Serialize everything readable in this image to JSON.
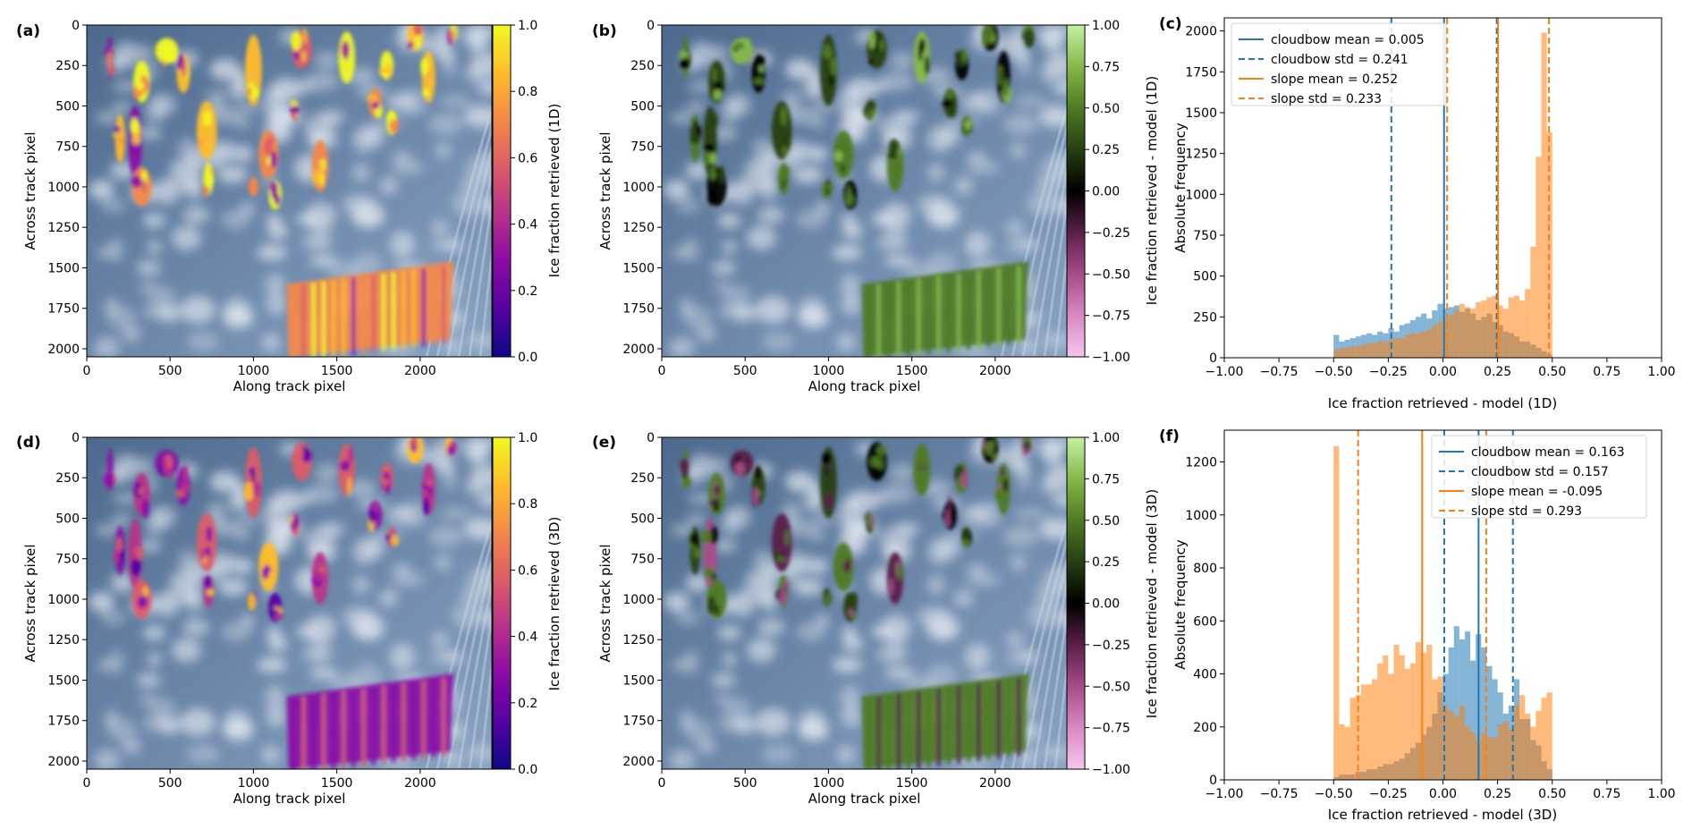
{
  "common": {
    "img_xlabel": "Along track pixel",
    "img_ylabel": "Across track pixel",
    "img_xticks": [
      "0",
      "500",
      "1000",
      "1500",
      "2000"
    ],
    "img_yticks": [
      "0",
      "250",
      "500",
      "750",
      "1000",
      "1250",
      "1500",
      "1750",
      "2000"
    ],
    "hist_ylabel": "Absolute frequency",
    "hist_xticks": [
      "−1.00",
      "−0.75",
      "−0.50",
      "−0.25",
      "0.00",
      "0.25",
      "0.50",
      "0.75",
      "1.00"
    ]
  },
  "colors": {
    "cloudbow": "#1f77b4",
    "slope": "#ff7f0e",
    "cloudbow_fill": "#1f77b4",
    "slope_fill": "#ff7f0e",
    "plasma": [
      "#0d0887",
      "#5302a3",
      "#8b0aa5",
      "#b83289",
      "#db5c68",
      "#f48849",
      "#febd2a",
      "#f0f921"
    ],
    "piyg": [
      "#f7c6ea",
      "#d889c2",
      "#a64d88",
      "#5a1f48",
      "#000000",
      "#273f12",
      "#4f7a22",
      "#86b84c",
      "#c4f2a2"
    ]
  },
  "panels": {
    "a": {
      "label": "(a)",
      "cbar_label": "Ice fraction retrieved (1D)",
      "cbar_ticks": [
        "0.0",
        "0.2",
        "0.4",
        "0.6",
        "0.8",
        "1.0"
      ]
    },
    "b": {
      "label": "(b)",
      "cbar_label": "Ice fraction retrieved - model (1D)",
      "cbar_ticks": [
        "−1.00",
        "−0.75",
        "−0.50",
        "−0.25",
        "0.00",
        "0.25",
        "0.50",
        "0.75",
        "1.00"
      ]
    },
    "c": {
      "label": "(c)",
      "xlabel": "Ice fraction retrieved - model (1D)",
      "yticks": [
        "0",
        "250",
        "500",
        "750",
        "1000",
        "1250",
        "1500",
        "1750",
        "2000"
      ],
      "legend": [
        "cloudbow mean = 0.005",
        "cloudbow std = 0.241",
        "slope mean = 0.252",
        "slope std = 0.233"
      ]
    },
    "d": {
      "label": "(d)",
      "cbar_label": "Ice fraction retrieved (3D)",
      "cbar_ticks": [
        "0.0",
        "0.2",
        "0.4",
        "0.6",
        "0.8",
        "1.0"
      ]
    },
    "e": {
      "label": "(e)",
      "cbar_label": "Ice fraction retrieved - model (3D)",
      "cbar_ticks": [
        "−1.00",
        "−0.75",
        "−0.50",
        "−0.25",
        "0.00",
        "0.25",
        "0.50",
        "0.75",
        "1.00"
      ]
    },
    "f": {
      "label": "(f)",
      "xlabel": "Ice fraction retrieved - model (3D)",
      "yticks": [
        "0",
        "200",
        "400",
        "600",
        "800",
        "1000",
        "1200"
      ],
      "legend": [
        "cloudbow mean = 0.163",
        "cloudbow std = 0.157",
        "slope mean = -0.095",
        "slope std = 0.293"
      ]
    }
  },
  "chart_data": [
    {
      "panel": "c",
      "type": "bar",
      "bins": [
        -0.5,
        -0.475,
        -0.45,
        -0.425,
        -0.4,
        -0.375,
        -0.35,
        -0.325,
        -0.3,
        -0.275,
        -0.25,
        -0.225,
        -0.2,
        -0.175,
        -0.15,
        -0.125,
        -0.1,
        -0.075,
        -0.05,
        -0.025,
        0.0,
        0.025,
        0.05,
        0.075,
        0.1,
        0.125,
        0.15,
        0.175,
        0.2,
        0.225,
        0.25,
        0.275,
        0.3,
        0.325,
        0.35,
        0.375,
        0.4,
        0.425,
        0.45,
        0.475
      ],
      "series": [
        {
          "name": "cloudbow",
          "values": [
            140,
            100,
            110,
            120,
            130,
            140,
            150,
            140,
            160,
            150,
            180,
            160,
            200,
            210,
            230,
            250,
            270,
            240,
            290,
            330,
            300,
            310,
            320,
            280,
            300,
            270,
            230,
            250,
            270,
            220,
            200,
            160,
            150,
            130,
            100,
            100,
            80,
            60,
            40,
            20
          ]
        },
        {
          "name": "slope",
          "values": [
            50,
            60,
            60,
            70,
            70,
            80,
            90,
            90,
            100,
            100,
            110,
            120,
            120,
            140,
            150,
            150,
            160,
            170,
            200,
            220,
            240,
            260,
            290,
            330,
            310,
            300,
            340,
            350,
            370,
            380,
            320,
            300,
            370,
            380,
            350,
            420,
            680,
            1230,
            1990,
            1380
          ]
        }
      ],
      "vlines": {
        "cloudbow_mean": 0.005,
        "cloudbow_std": [
          -0.236,
          0.246
        ],
        "slope_mean": 0.252,
        "slope_std": [
          0.019,
          0.485
        ]
      },
      "xlim": [
        -1.0,
        1.0
      ],
      "ylim": [
        0,
        2080
      ]
    },
    {
      "panel": "f",
      "type": "bar",
      "bins": [
        -0.5,
        -0.475,
        -0.45,
        -0.425,
        -0.4,
        -0.375,
        -0.35,
        -0.325,
        -0.3,
        -0.275,
        -0.25,
        -0.225,
        -0.2,
        -0.175,
        -0.15,
        -0.125,
        -0.1,
        -0.075,
        -0.05,
        -0.025,
        0.0,
        0.025,
        0.05,
        0.075,
        0.1,
        0.125,
        0.15,
        0.175,
        0.2,
        0.225,
        0.25,
        0.275,
        0.3,
        0.325,
        0.35,
        0.375,
        0.4,
        0.425,
        0.45,
        0.475
      ],
      "series": [
        {
          "name": "cloudbow",
          "values": [
            10,
            20,
            20,
            20,
            30,
            30,
            40,
            40,
            50,
            60,
            60,
            70,
            80,
            100,
            120,
            140,
            170,
            200,
            250,
            330,
            400,
            500,
            580,
            530,
            560,
            450,
            550,
            500,
            430,
            380,
            330,
            250,
            280,
            380,
            230,
            230,
            150,
            130,
            70,
            40
          ]
        },
        {
          "name": "slope",
          "values": [
            1260,
            210,
            200,
            310,
            320,
            360,
            360,
            380,
            440,
            470,
            400,
            510,
            470,
            420,
            440,
            520,
            480,
            510,
            380,
            390,
            280,
            260,
            240,
            280,
            200,
            180,
            150,
            180,
            160,
            160,
            210,
            220,
            190,
            280,
            320,
            250,
            200,
            260,
            310,
            330
          ]
        }
      ],
      "vlines": {
        "cloudbow_mean": 0.163,
        "cloudbow_std": [
          0.006,
          0.32
        ],
        "slope_mean": -0.095,
        "slope_std": [
          -0.388,
          0.198
        ]
      },
      "xlim": [
        -1.0,
        1.0
      ],
      "ylim": [
        0,
        1320
      ]
    }
  ]
}
